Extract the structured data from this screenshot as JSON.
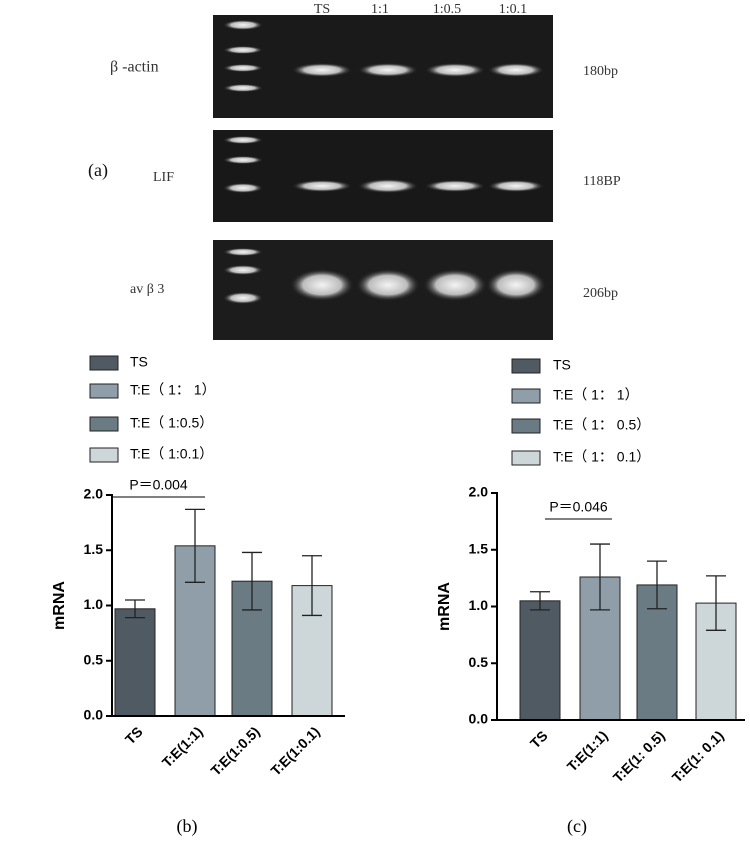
{
  "gel": {
    "lanes": [
      "TS",
      "1:1",
      "1:0.5",
      "1:0.1"
    ],
    "genes": [
      "β -actin",
      "LIF",
      "av β 3"
    ],
    "sizes": [
      "180bp",
      "118BP",
      "206bp"
    ],
    "panel_label": "(a)"
  },
  "chart_data": [
    {
      "type": "bar",
      "caption": "(b)",
      "ylabel": "mRNA",
      "categories": [
        "TS",
        "T:E(1:1)",
        "T:E(1:0.5)",
        "T:E(1:0.1)"
      ],
      "legend": [
        "TS",
        "T:E（ 1： 1）",
        "T:E（ 1:0.5）",
        "T:E（ 1:0.1）"
      ],
      "values": [
        0.97,
        1.54,
        1.22,
        1.18
      ],
      "errors": [
        0.08,
        0.33,
        0.26,
        0.27
      ],
      "colors": [
        "#4f5a62",
        "#8f9ea8",
        "#6b7b83",
        "#cdd7d9"
      ],
      "ylim": [
        0,
        2
      ],
      "yticks": [
        {
          "value": 0,
          "label": "0.0"
        },
        0.5,
        {
          "value": 1,
          "label": "1.0"
        },
        1.5,
        {
          "value": 2,
          "label": "2.0"
        }
      ],
      "annotations": [
        "P＝0.004"
      ]
    },
    {
      "type": "bar",
      "caption": "(c)",
      "ylabel": "mRNA",
      "categories": [
        "TS",
        "T:E(1:1)",
        "T:E(1: 0.5)",
        "T:E(1: 0.1)"
      ],
      "legend": [
        "TS",
        "T:E（ 1： 1）",
        "T:E（ 1： 0.5）",
        "T:E（ 1： 0.1）"
      ],
      "values": [
        1.05,
        1.26,
        1.19,
        1.03
      ],
      "errors": [
        0.08,
        0.29,
        0.21,
        0.24
      ],
      "colors": [
        "#4f5a62",
        "#8f9ea8",
        "#6b7b83",
        "#cdd7d9"
      ],
      "ylim": [
        0,
        2
      ],
      "yticks": [
        {
          "value": 0,
          "label": "0.0"
        },
        0.5,
        {
          "value": 1,
          "label": "1.0"
        },
        1.5,
        {
          "value": 2,
          "label": "2.0"
        }
      ],
      "annotations": [
        "P＝0.046"
      ]
    }
  ]
}
